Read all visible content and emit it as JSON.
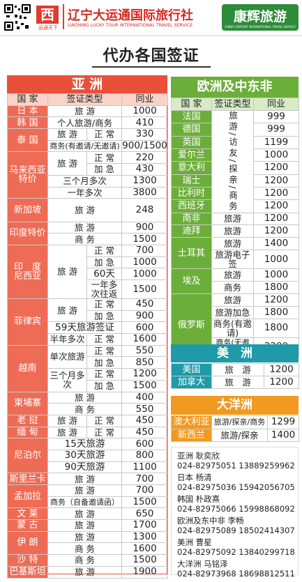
{
  "header": {
    "logo_caption": "运通天下",
    "brand": "辽宁大运通国际旅行社",
    "brand_en": "LIAONING LUCKY TOUR INTERNATIONAL TRAVEL SERVICE",
    "partner": "康辉旅游",
    "partner_en": "CHINA COMFORT INTERNATIONAL TRAVEL SERVICE"
  },
  "title": "代办各国签证",
  "asia": {
    "title": "亚 洲",
    "columns": [
      "国 家",
      "签证类型",
      "同业"
    ],
    "rows": [
      [
        "日 本",
        "旅 游",
        "1000"
      ],
      [
        "韩 国",
        "个人旅游/商务",
        "410"
      ],
      [
        "泰 国",
        "旅 游",
        "正 常",
        "330"
      ],
      [
        "商务(有邀请/无邀请)",
        "900/1500"
      ],
      [
        "马来西亚\n特价",
        "旅 游",
        "正 常",
        "220"
      ],
      [
        "加 急",
        "430"
      ],
      [
        "三个月多次",
        "1300"
      ],
      [
        "一年多次",
        "3800"
      ],
      [
        "新加坡",
        "旅 游",
        "248"
      ],
      [],
      [
        "印度特价",
        "旅 游",
        "900"
      ],
      [
        "商 务",
        "1500"
      ],
      [
        "印　度\n尼西亚",
        "旅 游",
        "正 常",
        "700"
      ],
      [
        "加 急",
        "1000"
      ],
      [
        "60天",
        "1000"
      ],
      [
        "一年多次往返",
        "1500"
      ],
      [
        "菲律宾",
        "旅 游",
        "正 常",
        "450"
      ],
      [
        "加 急",
        "900"
      ],
      [
        "59天旅游签证",
        "600"
      ],
      [
        "半年多次",
        "正 常",
        "1600"
      ],
      [
        "越南",
        "单次旅游",
        "正 常",
        "550"
      ],
      [
        "加 急",
        "850"
      ],
      [
        "三个月多次",
        "正 常",
        "1200"
      ],
      [
        "加 急",
        "1500"
      ],
      [
        "柬埔寨",
        "旅 游",
        "400"
      ],
      [
        "商 务",
        "550"
      ],
      [
        "老 挝",
        "旅 游",
        "正 常",
        "450"
      ],
      [
        "缅 甸",
        "旅 游",
        "正 常",
        "450"
      ],
      [
        "尼泊尔",
        "15天旅游",
        "600"
      ],
      [
        "30天旅游",
        "800"
      ],
      [
        "90天旅游",
        "1100"
      ],
      [
        "斯里兰卡",
        "旅 游",
        "700"
      ],
      [
        "孟加拉",
        "旅 游",
        "700"
      ],
      [
        "商务（自备邀请函）",
        "1500"
      ],
      [
        "文 莱",
        "旅 游",
        "650"
      ],
      [
        "蒙 古",
        "旅 游",
        "1700"
      ],
      [
        "伊 朗",
        "旅 游",
        "1300"
      ],
      [
        "商 务",
        "1600"
      ],
      [
        "沙 特",
        "商 务",
        "1500"
      ],
      [
        "巴基斯坦",
        "旅 游",
        "1900"
      ]
    ]
  },
  "europe": {
    "title": "欧洲及中东非",
    "columns": [
      "国 家",
      "签证类型",
      "同业"
    ],
    "rows": [
      [
        "法国",
        "旅游/访友/探亲/商务",
        "999"
      ],
      [
        "德国",
        "999"
      ],
      [
        "英国",
        "1199"
      ],
      [
        "爱尔兰",
        "1000"
      ],
      [
        "意大利",
        "1200"
      ],
      [
        "瑞士",
        "1200"
      ],
      [
        "比利时",
        "1200"
      ],
      [
        "西班牙",
        "1200"
      ],
      [
        "南非",
        "旅游",
        "1200"
      ],
      [
        "迪拜",
        "旅游",
        "1200"
      ],
      [
        "土耳其",
        "旅游",
        "1400"
      ],
      [
        "旅游电子签",
        "1000"
      ],
      [
        "埃及",
        "旅游",
        "1000"
      ],
      [
        "商务",
        "1800"
      ],
      [
        "俄罗斯",
        "旅游",
        "1200"
      ],
      [
        "旅游加急",
        "1800"
      ],
      [
        "商务(有邀请)",
        "1800"
      ],
      [
        "商务(无邀请函)",
        "2200"
      ]
    ]
  },
  "america": {
    "title": "美　洲",
    "rows": [
      [
        "美国",
        "旅　游",
        "1200"
      ],
      [
        "加拿大",
        "旅　游",
        "1200"
      ]
    ]
  },
  "oceania": {
    "title": "大洋洲",
    "rows": [
      [
        "澳大利亚",
        "旅游/探亲/商务",
        "1299"
      ],
      [
        "新西兰",
        "旅游/探亲",
        "1400"
      ]
    ]
  },
  "contacts": [
    {
      "label": "亚洲 耿奕欣",
      "phones": "024-82975051 13889259962"
    },
    {
      "label": "日本 杨清",
      "phones": "024-82975036 15942056705"
    },
    {
      "label": "韩国 朴政熹",
      "phones": "024-82975066 15998868092"
    },
    {
      "label": "欧洲及东中非 李畅",
      "phones": "024-82975089 18502414307"
    },
    {
      "label": "美洲 曹星",
      "phones": "024-82975092 13840299718"
    },
    {
      "label": "大洋洲 马铭泽",
      "phones": "024-82973968 18698812511"
    }
  ]
}
